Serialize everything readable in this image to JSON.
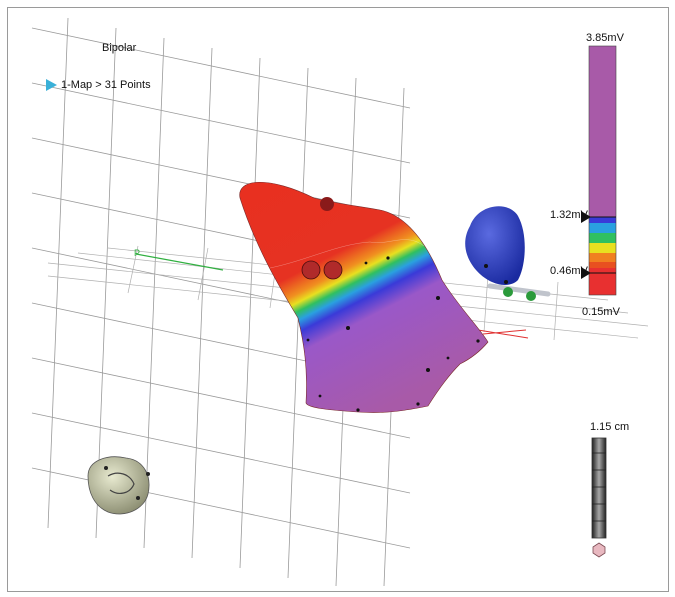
{
  "map": {
    "mode": "Bipolar",
    "entry_label": "1-Map > 31 Points"
  },
  "color_scale": {
    "max_label": "3.85mV",
    "upper_threshold_label": "1.32mV",
    "lower_threshold_label": "0.46mV",
    "min_label": "0.15mV",
    "colors": {
      "above_upper": "#a85aa8",
      "gradient": [
        "#a85aa8",
        "#3a3ad8",
        "#2aa0e0",
        "#30c060",
        "#e8e020",
        "#f08020",
        "#e02020"
      ],
      "below_lower": "#e83030"
    }
  },
  "ruler": {
    "value_label": "1.15 cm"
  },
  "icons": {
    "map_pointer": "triangle-right-icon",
    "orientation_head": "head-orientation-icon",
    "ruler_handle": "hexagon-handle-icon"
  }
}
